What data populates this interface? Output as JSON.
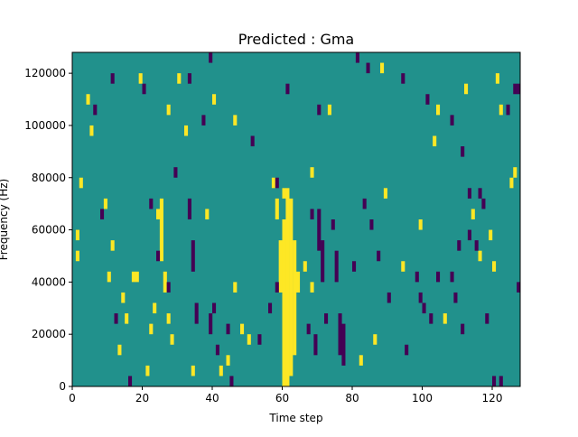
{
  "chart_data": {
    "type": "heatmap",
    "title": "Predicted : Gma",
    "xlabel": "Time step",
    "ylabel": "Frequency (Hz)",
    "xlim": [
      0,
      128
    ],
    "ylim": [
      0,
      128000
    ],
    "x_ticks": [
      "0",
      "20",
      "40",
      "60",
      "80",
      "100",
      "120"
    ],
    "x_tick_values": [
      0,
      20,
      40,
      60,
      80,
      100,
      120
    ],
    "y_ticks": [
      "0",
      "20000",
      "40000",
      "60000",
      "80000",
      "100000",
      "120000"
    ],
    "y_tick_values": [
      0,
      20000,
      40000,
      60000,
      80000,
      100000,
      120000
    ],
    "colormap": "viridis",
    "colors": {
      "background": "#21918c",
      "high": "#fde725",
      "low": "#440154"
    },
    "background_level": "mid",
    "high_cells": [
      [
        60,
        0,
        64000
      ],
      [
        60,
        72000,
        76000
      ],
      [
        61,
        0,
        76000
      ],
      [
        62,
        4000,
        72000
      ],
      [
        63,
        12000,
        56000
      ],
      [
        59,
        36000,
        56000
      ],
      [
        58,
        64000,
        72000
      ],
      [
        57,
        76000,
        80000
      ],
      [
        64,
        36000,
        44000
      ],
      [
        66,
        44000,
        48000
      ],
      [
        68,
        36000,
        40000
      ],
      [
        24,
        64000,
        68000
      ],
      [
        25,
        48000,
        72000
      ],
      [
        26,
        36000,
        44000
      ],
      [
        27,
        24000,
        28000
      ],
      [
        28,
        16000,
        20000
      ],
      [
        1,
        48000,
        52000
      ],
      [
        1,
        56000,
        60000
      ],
      [
        2,
        76000,
        80000
      ],
      [
        17,
        40000,
        44000
      ],
      [
        18,
        40000,
        44000
      ],
      [
        14,
        32000,
        36000
      ],
      [
        15,
        24000,
        28000
      ],
      [
        13,
        12000,
        16000
      ],
      [
        10,
        40000,
        44000
      ],
      [
        11,
        52000,
        56000
      ],
      [
        23,
        28000,
        32000
      ],
      [
        22,
        20000,
        24000
      ],
      [
        21,
        4000,
        8000
      ],
      [
        38,
        64000,
        68000
      ],
      [
        30,
        116000,
        120000
      ],
      [
        32,
        96000,
        100000
      ],
      [
        34,
        4000,
        8000
      ],
      [
        42,
        4000,
        8000
      ],
      [
        44,
        8000,
        12000
      ],
      [
        48,
        20000,
        24000
      ],
      [
        50,
        16000,
        20000
      ],
      [
        46,
        36000,
        40000
      ],
      [
        82,
        8000,
        12000
      ],
      [
        86,
        16000,
        20000
      ],
      [
        89,
        72000,
        76000
      ],
      [
        88,
        120000,
        124000
      ],
      [
        94,
        44000,
        48000
      ],
      [
        99,
        60000,
        64000
      ],
      [
        103,
        92000,
        96000
      ],
      [
        104,
        104000,
        108000
      ],
      [
        106,
        24000,
        28000
      ],
      [
        114,
        64000,
        68000
      ],
      [
        116,
        48000,
        52000
      ],
      [
        119,
        56000,
        60000
      ],
      [
        120,
        44000,
        48000
      ],
      [
        121,
        116000,
        120000
      ],
      [
        125,
        76000,
        80000
      ],
      [
        126,
        80000,
        84000
      ],
      [
        4,
        108000,
        112000
      ],
      [
        5,
        96000,
        100000
      ],
      [
        9,
        68000,
        72000
      ],
      [
        19,
        116000,
        120000
      ],
      [
        27,
        104000,
        108000
      ],
      [
        40,
        108000,
        112000
      ],
      [
        46,
        100000,
        104000
      ],
      [
        68,
        80000,
        84000
      ],
      [
        73,
        104000,
        108000
      ],
      [
        112,
        112000,
        116000
      ],
      [
        122,
        104000,
        108000
      ]
    ],
    "low_cells": [
      [
        70,
        52000,
        68000
      ],
      [
        71,
        40000,
        56000
      ],
      [
        74,
        60000,
        64000
      ],
      [
        75,
        40000,
        52000
      ],
      [
        76,
        12000,
        28000
      ],
      [
        77,
        8000,
        24000
      ],
      [
        72,
        24000,
        28000
      ],
      [
        68,
        64000,
        68000
      ],
      [
        69,
        12000,
        20000
      ],
      [
        67,
        20000,
        24000
      ],
      [
        33,
        64000,
        72000
      ],
      [
        34,
        44000,
        56000
      ],
      [
        35,
        24000,
        32000
      ],
      [
        39,
        20000,
        28000
      ],
      [
        40,
        28000,
        32000
      ],
      [
        41,
        12000,
        16000
      ],
      [
        44,
        20000,
        24000
      ],
      [
        45,
        0,
        4000
      ],
      [
        53,
        16000,
        20000
      ],
      [
        56,
        28000,
        32000
      ],
      [
        58,
        36000,
        40000
      ],
      [
        90,
        32000,
        36000
      ],
      [
        95,
        12000,
        16000
      ],
      [
        98,
        40000,
        44000
      ],
      [
        99,
        32000,
        36000
      ],
      [
        100,
        28000,
        32000
      ],
      [
        102,
        24000,
        28000
      ],
      [
        108,
        40000,
        44000
      ],
      [
        110,
        52000,
        56000
      ],
      [
        113,
        72000,
        76000
      ],
      [
        117,
        68000,
        72000
      ],
      [
        118,
        24000,
        28000
      ],
      [
        120,
        0,
        4000
      ],
      [
        122,
        0,
        4000
      ],
      [
        127,
        36000,
        40000
      ],
      [
        8,
        64000,
        68000
      ],
      [
        12,
        24000,
        28000
      ],
      [
        16,
        0,
        4000
      ],
      [
        22,
        68000,
        72000
      ],
      [
        24,
        48000,
        52000
      ],
      [
        27,
        36000,
        40000
      ],
      [
        20,
        112000,
        116000
      ],
      [
        11,
        116000,
        120000
      ],
      [
        6,
        104000,
        108000
      ],
      [
        29,
        80000,
        84000
      ],
      [
        33,
        116000,
        120000
      ],
      [
        37,
        100000,
        104000
      ],
      [
        39,
        124000,
        128000
      ],
      [
        51,
        92000,
        96000
      ],
      [
        58,
        76000,
        80000
      ],
      [
        61,
        112000,
        116000
      ],
      [
        70,
        104000,
        108000
      ],
      [
        81,
        124000,
        128000
      ],
      [
        84,
        120000,
        124000
      ],
      [
        94,
        116000,
        120000
      ],
      [
        101,
        108000,
        112000
      ],
      [
        108,
        100000,
        104000
      ],
      [
        111,
        88000,
        92000
      ],
      [
        116,
        72000,
        76000
      ],
      [
        126,
        112000,
        116000
      ],
      [
        127,
        112000,
        116000
      ],
      [
        124,
        104000,
        108000
      ],
      [
        83,
        68000,
        72000
      ],
      [
        85,
        60000,
        64000
      ],
      [
        87,
        48000,
        52000
      ],
      [
        80,
        44000,
        48000
      ],
      [
        104,
        40000,
        44000
      ],
      [
        109,
        32000,
        36000
      ],
      [
        111,
        20000,
        24000
      ],
      [
        113,
        56000,
        60000
      ],
      [
        115,
        52000,
        56000
      ]
    ]
  }
}
